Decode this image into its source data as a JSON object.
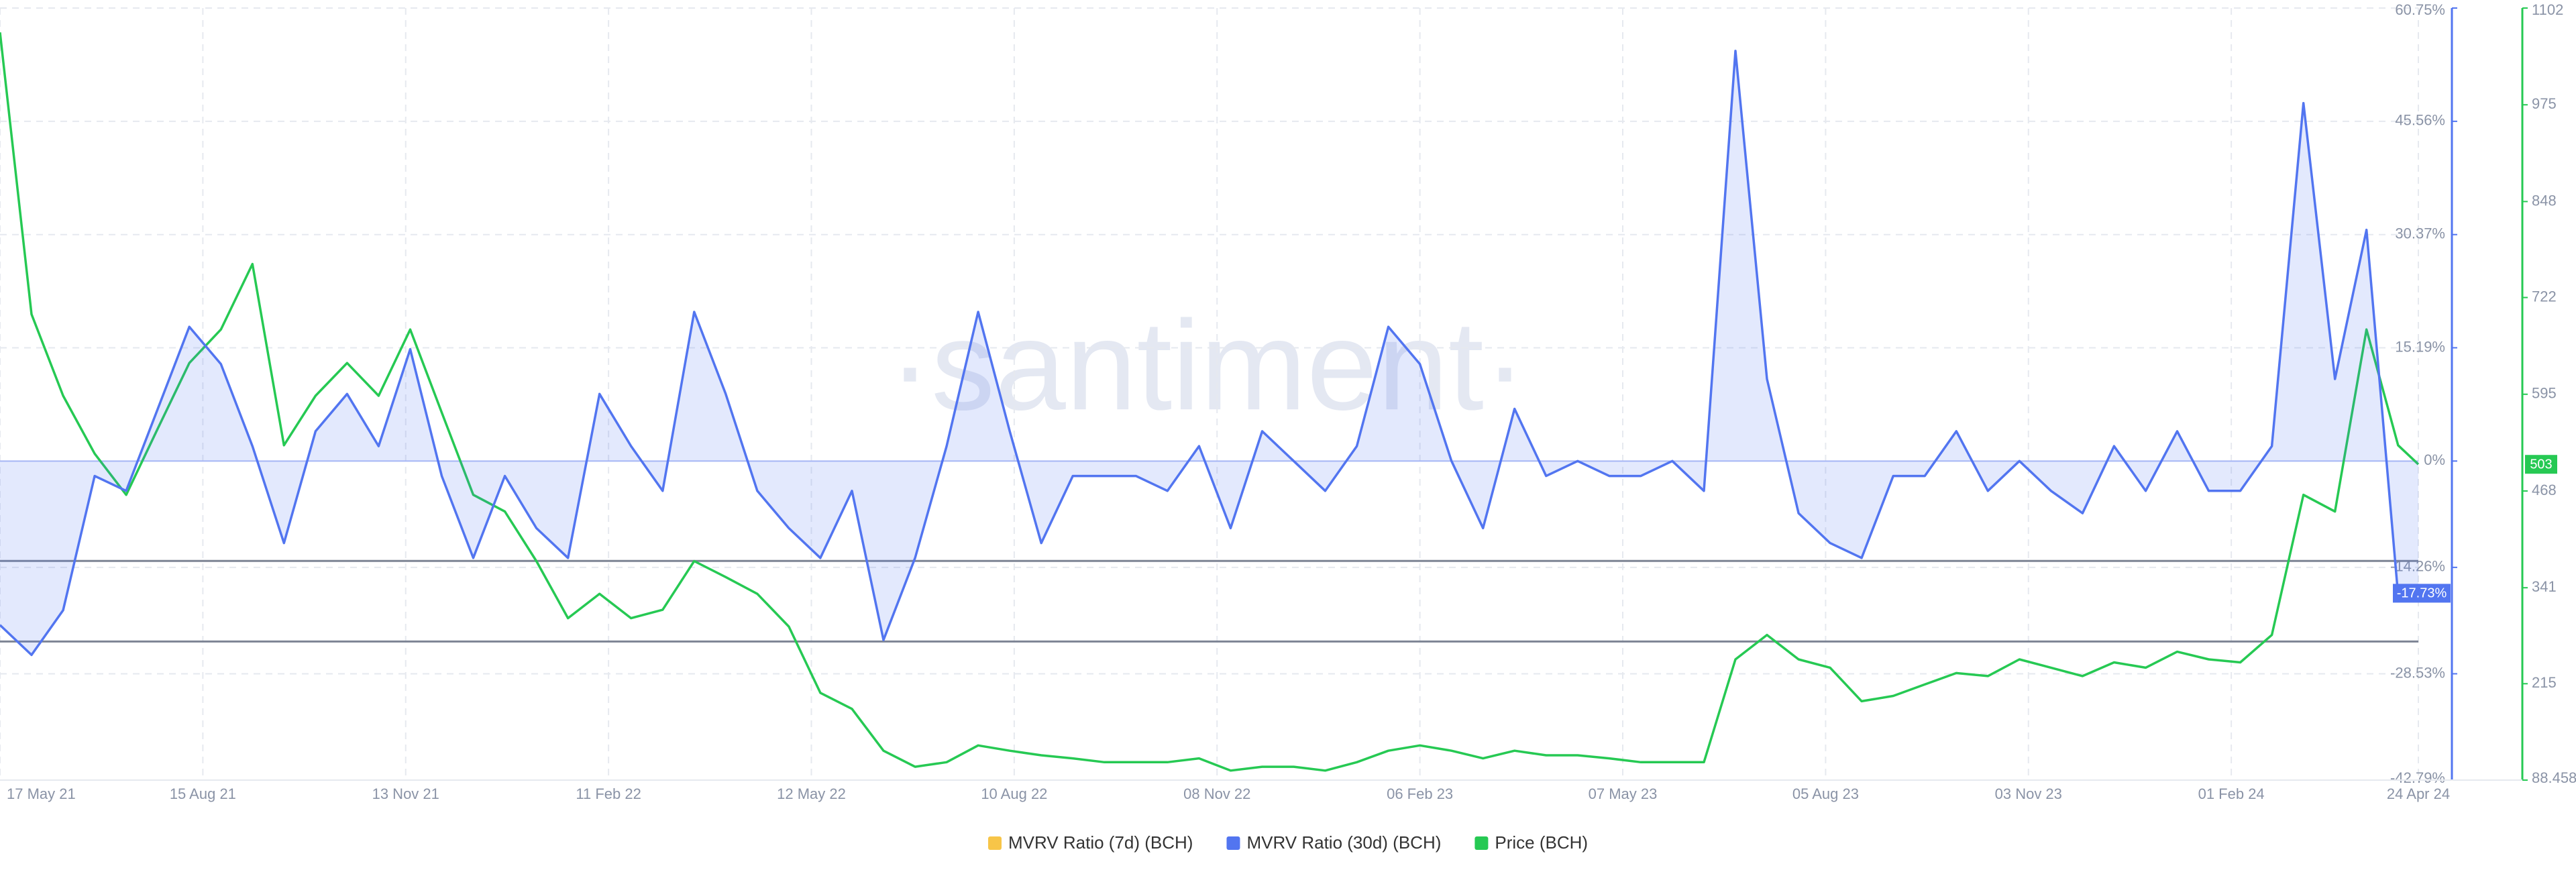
{
  "chart_data": {
    "type": "line",
    "watermark": "·santiment·",
    "x": [
      "2021-05-17",
      "2021-05-31",
      "2021-06-14",
      "2021-06-28",
      "2021-07-12",
      "2021-07-26",
      "2021-08-09",
      "2021-08-23",
      "2021-09-06",
      "2021-09-20",
      "2021-10-04",
      "2021-10-18",
      "2021-11-01",
      "2021-11-15",
      "2021-11-29",
      "2021-12-13",
      "2021-12-27",
      "2022-01-10",
      "2022-01-24",
      "2022-02-07",
      "2022-02-21",
      "2022-03-07",
      "2022-03-21",
      "2022-04-04",
      "2022-04-18",
      "2022-05-02",
      "2022-05-16",
      "2022-05-30",
      "2022-06-13",
      "2022-06-27",
      "2022-07-11",
      "2022-07-25",
      "2022-08-08",
      "2022-08-22",
      "2022-09-05",
      "2022-09-19",
      "2022-10-03",
      "2022-10-17",
      "2022-10-31",
      "2022-11-14",
      "2022-11-28",
      "2022-12-12",
      "2022-12-26",
      "2023-01-09",
      "2023-01-23",
      "2023-02-06",
      "2023-02-20",
      "2023-03-06",
      "2023-03-20",
      "2023-04-03",
      "2023-04-17",
      "2023-05-01",
      "2023-05-15",
      "2023-05-29",
      "2023-06-12",
      "2023-06-26",
      "2023-07-10",
      "2023-07-24",
      "2023-08-07",
      "2023-08-21",
      "2023-09-04",
      "2023-09-18",
      "2023-10-02",
      "2023-10-16",
      "2023-10-30",
      "2023-11-13",
      "2023-11-27",
      "2023-12-11",
      "2023-12-25",
      "2024-01-08",
      "2024-01-22",
      "2024-02-05",
      "2024-02-19",
      "2024-03-04",
      "2024-03-18",
      "2024-04-01",
      "2024-04-15",
      "2024-04-24"
    ],
    "xlim": [
      "2021-05-17",
      "2024-04-24"
    ],
    "xticks": [
      {
        "value": "2021-05-17",
        "label": "17 May 21"
      },
      {
        "value": "2021-08-15",
        "label": "15 Aug 21"
      },
      {
        "value": "2021-11-13",
        "label": "13 Nov 21"
      },
      {
        "value": "2022-02-11",
        "label": "11 Feb 22"
      },
      {
        "value": "2022-05-12",
        "label": "12 May 22"
      },
      {
        "value": "2022-08-10",
        "label": "10 Aug 22"
      },
      {
        "value": "2022-11-08",
        "label": "08 Nov 22"
      },
      {
        "value": "2023-02-06",
        "label": "06 Feb 23"
      },
      {
        "value": "2023-05-07",
        "label": "07 May 23"
      },
      {
        "value": "2023-08-05",
        "label": "05 Aug 23"
      },
      {
        "value": "2023-11-03",
        "label": "03 Nov 23"
      },
      {
        "value": "2024-02-01",
        "label": "01 Feb 24"
      },
      {
        "value": "2024-04-24",
        "label": "24 Apr 24"
      }
    ],
    "ylim": [
      -42.79,
      60.75
    ],
    "yticks": [
      {
        "value": -42.79,
        "label": "-42.79%"
      },
      {
        "value": -28.53,
        "label": "-28.53%"
      },
      {
        "value": -14.26,
        "label": "-14.26%"
      },
      {
        "value": 0,
        "label": "0%"
      },
      {
        "value": 15.19,
        "label": "15.19%"
      },
      {
        "value": 30.37,
        "label": "30.37%"
      },
      {
        "value": 45.56,
        "label": "45.56%"
      },
      {
        "value": 60.75,
        "label": "60.75%"
      }
    ],
    "y2lim": [
      88.458,
      1102
    ],
    "y2ticks": [
      88.458,
      215,
      341,
      468,
      595,
      722,
      848,
      975,
      1102
    ],
    "reference_lines": [
      -13.4,
      -24.2
    ],
    "grid": true,
    "series": [
      {
        "name": "MVRV Ratio (7d) (BCH)",
        "color": "#f7c548",
        "values": [
          null,
          null,
          null,
          null,
          null,
          null,
          null,
          null,
          null,
          null,
          null,
          null,
          null,
          null,
          null,
          null,
          null,
          null,
          null,
          null,
          null,
          null,
          null,
          null,
          null,
          null,
          null,
          null,
          null,
          null,
          null,
          null,
          null,
          null,
          null,
          null,
          null,
          null,
          null,
          null,
          null,
          null,
          null,
          null,
          null,
          null,
          null,
          null,
          null,
          null,
          null,
          null,
          null,
          null,
          null,
          null,
          null,
          null,
          null,
          null,
          null,
          null,
          null,
          null,
          null,
          null,
          null,
          null,
          null,
          null,
          null,
          null,
          null,
          null,
          null,
          null,
          null,
          null
        ]
      },
      {
        "name": "MVRV Ratio (30d) (BCH)",
        "color": "#5275f0",
        "last_label": "-17.73%",
        "values": [
          -22,
          -26,
          -20,
          -2,
          -4,
          7,
          18,
          13,
          2,
          -11,
          4,
          9,
          2,
          15,
          -2,
          -13,
          -2,
          -9,
          -13,
          9,
          2,
          -4,
          20,
          9,
          -4,
          -9,
          -13,
          -4,
          -24,
          -13,
          2,
          20,
          4,
          -11,
          -2,
          -2,
          -2,
          -4,
          2,
          -9,
          4,
          0,
          -4,
          2,
          18,
          13,
          0,
          -9,
          7,
          -2,
          0,
          -2,
          -2,
          0,
          -4,
          55,
          11,
          -7,
          -11,
          -13,
          -2,
          -2,
          4,
          -4,
          0,
          -4,
          -7,
          2,
          -4,
          4,
          -4,
          -4,
          2,
          48,
          11,
          31,
          -18,
          -17.73
        ]
      },
      {
        "name": "Price (BCH)",
        "color": "#26c953",
        "axis": "y2",
        "last_label": "503",
        "values": [
          1070,
          700,
          593,
          517,
          463,
          550,
          636,
          680,
          766,
          528,
          593,
          636,
          593,
          680,
          571,
          463,
          441,
          376,
          301,
          333,
          301,
          312,
          376,
          355,
          333,
          290,
          203,
          182,
          127,
          106,
          112,
          134,
          127,
          121,
          117,
          112,
          112,
          112,
          117,
          101,
          106,
          106,
          101,
          112,
          127,
          134,
          127,
          117,
          127,
          121,
          121,
          117,
          112,
          112,
          112,
          247,
          279,
          247,
          236,
          192,
          199,
          214,
          229,
          225,
          247,
          236,
          225,
          243,
          236,
          257,
          247,
          243,
          279,
          463,
          441,
          680,
          528,
          503
        ]
      }
    ]
  }
}
